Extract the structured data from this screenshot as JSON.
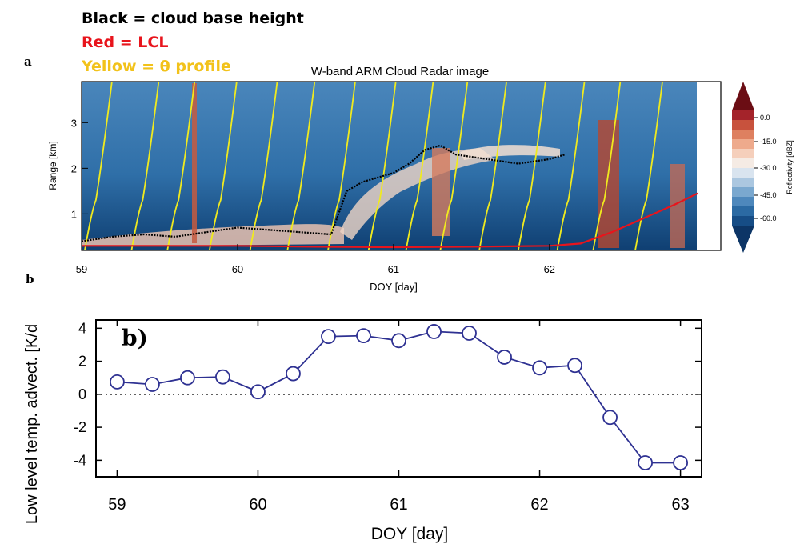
{
  "legend": {
    "black": "Black = cloud base height",
    "red": "Red = LCL",
    "yellow": "Yellow = θ profile"
  },
  "colors": {
    "black_label": "#000000",
    "red_label": "#e8141c",
    "yellow_label": "#f2c21a",
    "series_line": "#2e3192",
    "radar_background": "#2b6ea6"
  },
  "chart_data": [
    {
      "panel_label": "a",
      "type": "heatmap",
      "title": "W-band ARM Cloud Radar image",
      "xlabel": "DOY [day]",
      "ylabel": "Range [km]",
      "xlim": [
        59,
        62.95
      ],
      "ylim": [
        0.2,
        3.9
      ],
      "xticks": [
        59,
        60,
        61,
        62
      ],
      "yticks": [
        1,
        2,
        3
      ],
      "colorbar": {
        "label": "Reflectivity [dBZ]",
        "ticks": [
          "0.0",
          "-15.0",
          "-30.0",
          "-45.0",
          "-60.0"
        ]
      },
      "overlays": [
        {
          "color": "black",
          "x": [
            59.0,
            59.2,
            59.4,
            59.6,
            59.8,
            60.0,
            60.2,
            60.4,
            60.6,
            60.7,
            60.8,
            60.9,
            61.0,
            61.1,
            61.2,
            61.3,
            61.4,
            61.6,
            61.8,
            62.0,
            62.1
          ],
          "y": [
            0.4,
            0.5,
            0.55,
            0.5,
            0.6,
            0.7,
            0.65,
            0.6,
            0.55,
            1.5,
            1.7,
            1.8,
            1.9,
            2.1,
            2.4,
            2.5,
            2.3,
            2.2,
            2.1,
            2.2,
            2.3
          ]
        },
        {
          "color": "red",
          "x": [
            59.0,
            59.5,
            60.0,
            60.5,
            61.0,
            61.5,
            62.0,
            62.2,
            62.4,
            62.6,
            62.8,
            62.95
          ],
          "y": [
            0.3,
            0.3,
            0.3,
            0.28,
            0.27,
            0.28,
            0.3,
            0.35,
            0.6,
            0.9,
            1.2,
            1.45
          ]
        }
      ]
    },
    {
      "panel_label": "b)",
      "type": "line",
      "xlabel": "DOY [day]",
      "ylabel": "Low level temp. advect. [K/d",
      "x": [
        59.0,
        59.25,
        59.5,
        59.75,
        60.0,
        60.25,
        60.5,
        60.75,
        61.0,
        61.25,
        61.5,
        61.75,
        62.0,
        62.25,
        62.5,
        62.75,
        63.0
      ],
      "series": [
        {
          "values": [
            0.75,
            0.6,
            1.0,
            1.05,
            0.15,
            1.25,
            3.5,
            3.55,
            3.25,
            3.8,
            3.7,
            2.25,
            1.6,
            1.75,
            -1.4,
            -4.15,
            -4.15
          ]
        }
      ],
      "xlim": [
        58.85,
        63.15
      ],
      "ylim": [
        -5,
        4.5
      ],
      "xticks": [
        59,
        60,
        61,
        62,
        63
      ],
      "yticks": [
        -4,
        -2,
        0,
        2,
        4
      ],
      "zero_line": "dotted"
    }
  ]
}
